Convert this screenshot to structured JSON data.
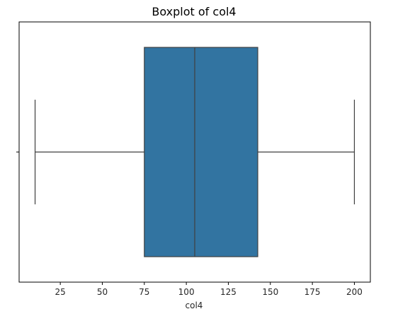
{
  "chart_data": {
    "type": "boxplot",
    "title": "Boxplot of col4",
    "xlabel": "col4",
    "ylabel": "",
    "orientation": "horizontal",
    "xlim": [
      0.5,
      209.5
    ],
    "xticks": [
      25,
      50,
      75,
      100,
      125,
      150,
      175,
      200
    ],
    "xtick_labels": [
      "25",
      "50",
      "75",
      "100",
      "125",
      "150",
      "175",
      "200"
    ],
    "grid": false,
    "series": [
      {
        "whisker_low": 10,
        "q1": 75,
        "median": 105,
        "q3": 142.5,
        "whisker_high": 200
      }
    ],
    "colors": {
      "box_fill": "#3274a1",
      "line": "#3f3f3f",
      "axes": "#000000"
    }
  }
}
